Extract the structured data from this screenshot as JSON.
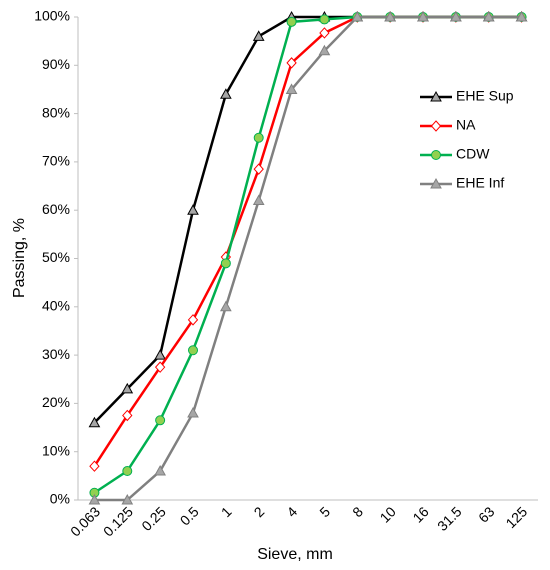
{
  "chart_data": {
    "type": "line",
    "xlabel": "Sieve, mm",
    "ylabel": "Passing, %",
    "categories": [
      "0.063",
      "0.125",
      "0.25",
      "0.5",
      "1",
      "2",
      "4",
      "5",
      "8",
      "10",
      "16",
      "31.5",
      "63",
      "125"
    ],
    "series": [
      {
        "name": "EHE Sup",
        "color": "#000000",
        "marker": "triangle",
        "marker_fill": "#a6a6a6",
        "values": [
          16,
          23,
          30,
          60,
          84,
          96,
          100,
          100,
          100,
          100,
          100,
          100,
          100,
          100
        ]
      },
      {
        "name": "NA",
        "color": "#ff0000",
        "marker": "diamond",
        "marker_fill": "#ffffff",
        "values": [
          7,
          17.5,
          27.5,
          37.3,
          50.3,
          68.5,
          90.5,
          96.7,
          100,
          100,
          100,
          100,
          100,
          100
        ]
      },
      {
        "name": "CDW",
        "color": "#00b050",
        "marker": "circle",
        "marker_fill": "#92d050",
        "values": [
          1.5,
          6,
          16.5,
          31,
          49,
          75,
          99,
          99.5,
          100,
          100,
          100,
          100,
          100,
          100
        ]
      },
      {
        "name": "EHE Inf",
        "color": "#808080",
        "marker": "triangle",
        "marker_fill": "#a6a6a6",
        "values": [
          0,
          0,
          6,
          18,
          40,
          62,
          85,
          93,
          100,
          100,
          100,
          100,
          100,
          100
        ]
      }
    ],
    "ylim": [
      0,
      100
    ],
    "yticks": [
      {
        "value": 0,
        "label": "0%"
      },
      {
        "value": 10,
        "label": "10%"
      },
      {
        "value": 20,
        "label": "20%"
      },
      {
        "value": 30,
        "label": "30%"
      },
      {
        "value": 40,
        "label": "40%"
      },
      {
        "value": 50,
        "label": "50%"
      },
      {
        "value": 60,
        "label": "60%"
      },
      {
        "value": 70,
        "label": "70%"
      },
      {
        "value": 80,
        "label": "80%"
      },
      {
        "value": 90,
        "label": "90%"
      },
      {
        "value": 100,
        "label": "100%"
      }
    ],
    "grid": false,
    "legend": "upper right"
  }
}
